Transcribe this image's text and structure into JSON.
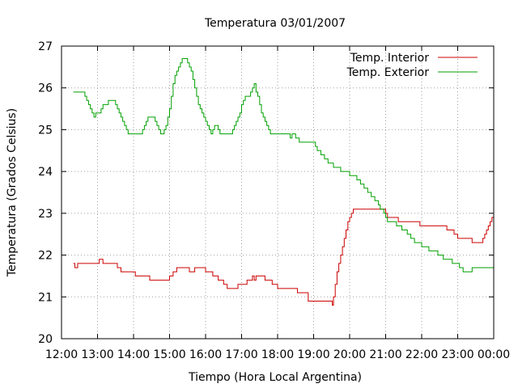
{
  "chart_data": {
    "type": "line",
    "title": "Temperatura 03/01/2007",
    "xlabel": "Tiempo (Hora Local Argentina)",
    "ylabel": "Temperatura (Grados Celsius)",
    "x_ticks": [
      "12:00",
      "13:00",
      "14:00",
      "15:00",
      "16:00",
      "17:00",
      "18:00",
      "19:00",
      "20:00",
      "21:00",
      "22:00",
      "23:00",
      "00:00"
    ],
    "y_ticks": [
      "20",
      "21",
      "22",
      "23",
      "24",
      "25",
      "26",
      "27"
    ],
    "xlim_hours": [
      12,
      24
    ],
    "ylim": [
      20,
      27
    ],
    "grid": true,
    "legend_position": "top-right",
    "series": [
      {
        "name": "Temp. Interior",
        "color": "#cc0000",
        "points": [
          [
            12.33,
            21.8
          ],
          [
            12.37,
            21.7
          ],
          [
            12.45,
            21.8
          ],
          [
            13.0,
            21.8
          ],
          [
            13.05,
            21.9
          ],
          [
            13.15,
            21.8
          ],
          [
            13.4,
            21.8
          ],
          [
            13.55,
            21.7
          ],
          [
            13.65,
            21.6
          ],
          [
            14.0,
            21.6
          ],
          [
            14.05,
            21.5
          ],
          [
            14.4,
            21.5
          ],
          [
            14.45,
            21.4
          ],
          [
            14.9,
            21.4
          ],
          [
            15.0,
            21.5
          ],
          [
            15.1,
            21.6
          ],
          [
            15.2,
            21.7
          ],
          [
            15.5,
            21.7
          ],
          [
            15.55,
            21.6
          ],
          [
            15.7,
            21.7
          ],
          [
            15.9,
            21.7
          ],
          [
            16.0,
            21.6
          ],
          [
            16.1,
            21.6
          ],
          [
            16.2,
            21.5
          ],
          [
            16.35,
            21.4
          ],
          [
            16.5,
            21.3
          ],
          [
            16.6,
            21.2
          ],
          [
            16.85,
            21.2
          ],
          [
            16.9,
            21.3
          ],
          [
            17.1,
            21.3
          ],
          [
            17.15,
            21.4
          ],
          [
            17.3,
            21.5
          ],
          [
            17.35,
            21.4
          ],
          [
            17.4,
            21.5
          ],
          [
            17.6,
            21.5
          ],
          [
            17.65,
            21.4
          ],
          [
            17.85,
            21.3
          ],
          [
            18.0,
            21.2
          ],
          [
            18.5,
            21.2
          ],
          [
            18.55,
            21.1
          ],
          [
            18.8,
            21.1
          ],
          [
            18.85,
            20.9
          ],
          [
            19.5,
            20.9
          ],
          [
            19.52,
            20.8
          ],
          [
            19.55,
            21.0
          ],
          [
            19.6,
            21.3
          ],
          [
            19.65,
            21.6
          ],
          [
            19.7,
            21.8
          ],
          [
            19.75,
            22.0
          ],
          [
            19.8,
            22.2
          ],
          [
            19.85,
            22.4
          ],
          [
            19.9,
            22.6
          ],
          [
            19.95,
            22.8
          ],
          [
            20.0,
            22.9
          ],
          [
            20.05,
            23.0
          ],
          [
            20.1,
            23.1
          ],
          [
            20.9,
            23.1
          ],
          [
            21.0,
            23.0
          ],
          [
            21.05,
            22.9
          ],
          [
            21.3,
            22.9
          ],
          [
            21.35,
            22.8
          ],
          [
            21.9,
            22.8
          ],
          [
            21.95,
            22.7
          ],
          [
            22.65,
            22.7
          ],
          [
            22.7,
            22.6
          ],
          [
            22.85,
            22.6
          ],
          [
            22.9,
            22.5
          ],
          [
            23.0,
            22.4
          ],
          [
            23.35,
            22.4
          ],
          [
            23.4,
            22.3
          ],
          [
            23.65,
            22.3
          ],
          [
            23.7,
            22.4
          ],
          [
            23.75,
            22.5
          ],
          [
            23.8,
            22.6
          ],
          [
            23.85,
            22.7
          ],
          [
            23.9,
            22.8
          ],
          [
            23.95,
            22.9
          ],
          [
            24.0,
            22.9
          ]
        ]
      },
      {
        "name": "Temp. Exterior",
        "color": "#00a000",
        "points": [
          [
            12.33,
            25.9
          ],
          [
            12.6,
            25.9
          ],
          [
            12.65,
            25.8
          ],
          [
            12.7,
            25.7
          ],
          [
            12.75,
            25.6
          ],
          [
            12.8,
            25.5
          ],
          [
            12.85,
            25.4
          ],
          [
            12.9,
            25.3
          ],
          [
            12.95,
            25.4
          ],
          [
            13.05,
            25.4
          ],
          [
            13.1,
            25.5
          ],
          [
            13.15,
            25.6
          ],
          [
            13.25,
            25.6
          ],
          [
            13.3,
            25.7
          ],
          [
            13.5,
            25.6
          ],
          [
            13.55,
            25.5
          ],
          [
            13.6,
            25.4
          ],
          [
            13.65,
            25.3
          ],
          [
            13.7,
            25.2
          ],
          [
            13.75,
            25.1
          ],
          [
            13.8,
            25.0
          ],
          [
            13.85,
            24.9
          ],
          [
            14.2,
            24.9
          ],
          [
            14.25,
            25.0
          ],
          [
            14.3,
            25.1
          ],
          [
            14.35,
            25.2
          ],
          [
            14.4,
            25.3
          ],
          [
            14.55,
            25.3
          ],
          [
            14.6,
            25.2
          ],
          [
            14.65,
            25.1
          ],
          [
            14.7,
            25.0
          ],
          [
            14.75,
            24.9
          ],
          [
            14.8,
            24.9
          ],
          [
            14.85,
            25.0
          ],
          [
            14.9,
            25.1
          ],
          [
            14.95,
            25.3
          ],
          [
            15.0,
            25.5
          ],
          [
            15.05,
            25.8
          ],
          [
            15.1,
            26.1
          ],
          [
            15.15,
            26.3
          ],
          [
            15.2,
            26.4
          ],
          [
            15.25,
            26.5
          ],
          [
            15.3,
            26.6
          ],
          [
            15.35,
            26.7
          ],
          [
            15.45,
            26.7
          ],
          [
            15.5,
            26.6
          ],
          [
            15.55,
            26.5
          ],
          [
            15.6,
            26.4
          ],
          [
            15.65,
            26.2
          ],
          [
            15.7,
            26.0
          ],
          [
            15.75,
            25.8
          ],
          [
            15.8,
            25.6
          ],
          [
            15.85,
            25.5
          ],
          [
            15.9,
            25.4
          ],
          [
            15.95,
            25.3
          ],
          [
            16.0,
            25.2
          ],
          [
            16.05,
            25.1
          ],
          [
            16.1,
            25.0
          ],
          [
            16.15,
            24.9
          ],
          [
            16.2,
            25.0
          ],
          [
            16.25,
            25.1
          ],
          [
            16.3,
            25.1
          ],
          [
            16.35,
            25.0
          ],
          [
            16.4,
            24.9
          ],
          [
            16.7,
            24.9
          ],
          [
            16.75,
            25.0
          ],
          [
            16.8,
            25.1
          ],
          [
            16.85,
            25.2
          ],
          [
            16.9,
            25.3
          ],
          [
            16.95,
            25.4
          ],
          [
            17.0,
            25.6
          ],
          [
            17.05,
            25.7
          ],
          [
            17.1,
            25.8
          ],
          [
            17.2,
            25.8
          ],
          [
            17.25,
            25.9
          ],
          [
            17.3,
            26.0
          ],
          [
            17.35,
            26.1
          ],
          [
            17.4,
            25.9
          ],
          [
            17.45,
            25.8
          ],
          [
            17.5,
            25.6
          ],
          [
            17.55,
            25.4
          ],
          [
            17.6,
            25.3
          ],
          [
            17.65,
            25.2
          ],
          [
            17.7,
            25.1
          ],
          [
            17.75,
            25.0
          ],
          [
            17.8,
            24.9
          ],
          [
            18.3,
            24.9
          ],
          [
            18.35,
            24.8
          ],
          [
            18.4,
            24.9
          ],
          [
            18.5,
            24.8
          ],
          [
            18.6,
            24.7
          ],
          [
            19.0,
            24.7
          ],
          [
            19.05,
            24.6
          ],
          [
            19.1,
            24.5
          ],
          [
            19.2,
            24.4
          ],
          [
            19.3,
            24.3
          ],
          [
            19.4,
            24.2
          ],
          [
            19.55,
            24.1
          ],
          [
            19.75,
            24.0
          ],
          [
            19.9,
            24.0
          ],
          [
            20.0,
            23.9
          ],
          [
            20.1,
            23.9
          ],
          [
            20.2,
            23.8
          ],
          [
            20.3,
            23.7
          ],
          [
            20.4,
            23.6
          ],
          [
            20.5,
            23.5
          ],
          [
            20.6,
            23.4
          ],
          [
            20.7,
            23.3
          ],
          [
            20.8,
            23.2
          ],
          [
            20.85,
            23.1
          ],
          [
            20.95,
            23.0
          ],
          [
            21.0,
            22.9
          ],
          [
            21.05,
            22.8
          ],
          [
            21.1,
            22.8
          ],
          [
            21.3,
            22.7
          ],
          [
            21.45,
            22.6
          ],
          [
            21.6,
            22.5
          ],
          [
            21.7,
            22.4
          ],
          [
            21.8,
            22.3
          ],
          [
            22.0,
            22.2
          ],
          [
            22.2,
            22.1
          ],
          [
            22.45,
            22.0
          ],
          [
            22.6,
            21.9
          ],
          [
            22.85,
            21.8
          ],
          [
            23.05,
            21.7
          ],
          [
            23.15,
            21.6
          ],
          [
            23.35,
            21.6
          ],
          [
            23.4,
            21.7
          ],
          [
            23.95,
            21.7
          ],
          [
            24.0,
            21.6
          ]
        ]
      }
    ]
  }
}
